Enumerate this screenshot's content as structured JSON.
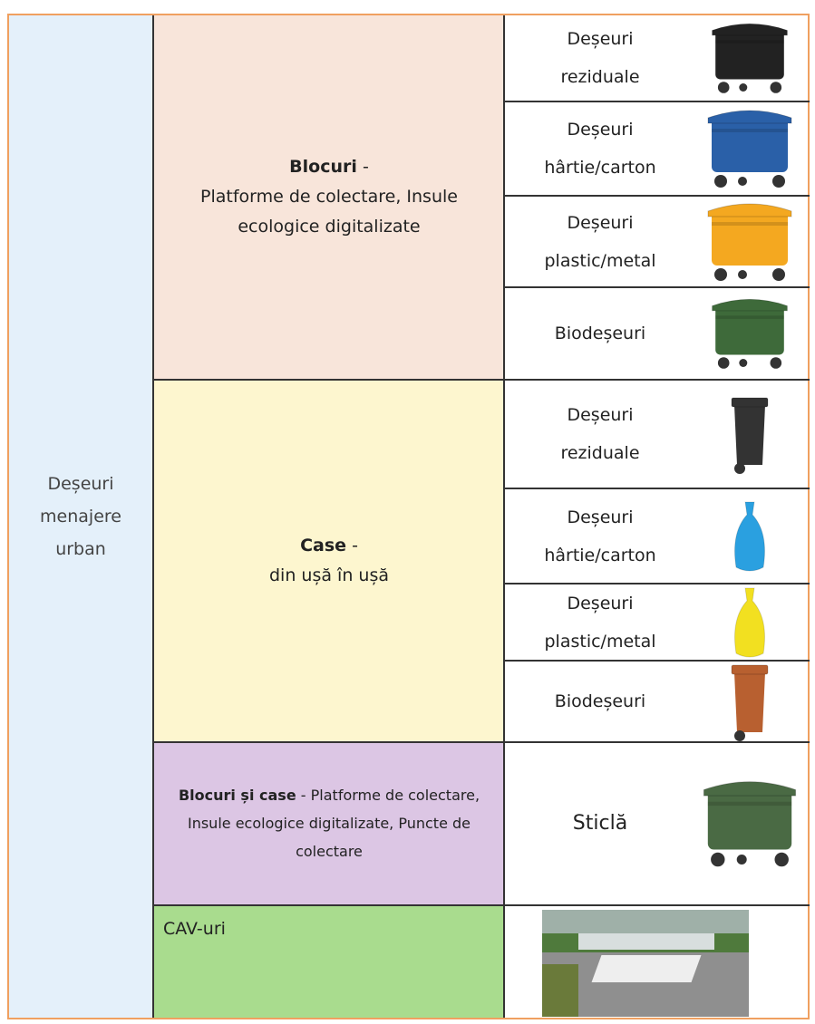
{
  "table": {
    "left": {
      "lines": [
        "Deșeuri",
        "menajere",
        "urban"
      ]
    },
    "sections": [
      {
        "title": "Blocuri",
        "separator": "-",
        "text": "Platforme de colectare, Insule ecologice digitalizate",
        "items": [
          [
            "Deșeuri",
            "reziduale"
          ],
          [
            "Deșeuri",
            "hârtie/carton"
          ],
          [
            "Deșeuri",
            "plastic/metal"
          ],
          [
            "Biodeșeuri"
          ]
        ]
      },
      {
        "title": "Case",
        "separator": "-",
        "text": "din ușă în ușă",
        "items": [
          [
            "Deșeuri",
            "reziduale"
          ],
          [
            "Deșeuri",
            "hârtie/carton"
          ],
          [
            "Deșeuri",
            "plastic/metal"
          ],
          [
            "Biodeșeuri"
          ]
        ]
      },
      {
        "title": "Blocuri și case",
        "separator": "-",
        "text": "Platforme de colectare, Insule ecologice digitalizate, Puncte de colectare",
        "items": [
          [
            "Sticlă"
          ]
        ]
      },
      {
        "title": "CAV-uri",
        "items": []
      }
    ]
  }
}
